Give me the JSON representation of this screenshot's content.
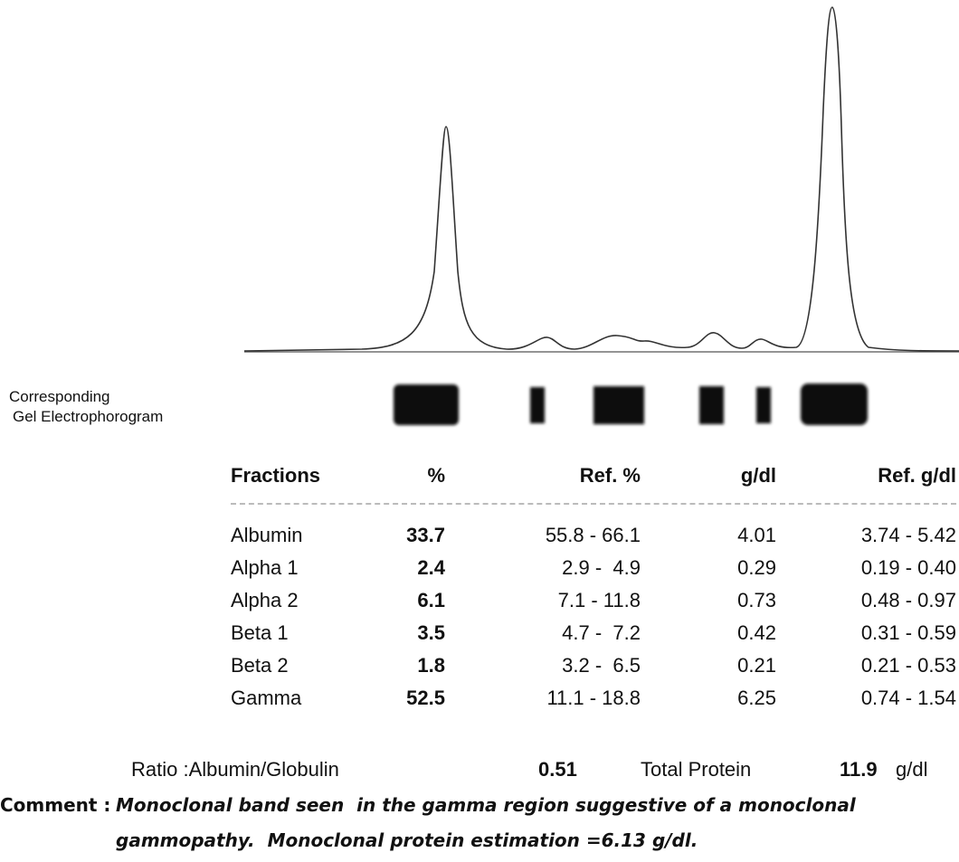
{
  "gel_label": [
    "Corresponding",
    "Gel Electrophorogram"
  ],
  "table": {
    "header": [
      "Fractions",
      "%",
      "Ref. %",
      "g/dl",
      "Ref. g/dl"
    ],
    "rows": [
      [
        "Albumin",
        "33.7",
        "55.8 - 66.1",
        "4.01",
        "3.74 - 5.42"
      ],
      [
        "Alpha 1",
        "2.4",
        "2.9 -  4.9",
        "0.29",
        "0.19 - 0.40"
      ],
      [
        "Alpha 2",
        "6.1",
        "7.1 - 11.8",
        "0.73",
        "0.48 - 0.97"
      ],
      [
        "Beta 1",
        "3.5",
        "4.7 -  7.2",
        "0.42",
        "0.31 - 0.59"
      ],
      [
        "Beta 2",
        "1.8",
        "3.2 -  6.5",
        "0.21",
        "0.21 - 0.53"
      ],
      [
        "Gamma",
        "52.5",
        "11.1 - 18.8",
        "6.25",
        "0.74 - 1.54"
      ]
    ]
  },
  "summary": {
    "ratio_label": "Ratio :Albumin/Globulin",
    "ratio_value": "0.51",
    "total_label": "Total Protein",
    "total_value": "11.9",
    "total_unit": "g/dl"
  },
  "comment": {
    "label": "Comment :",
    "lines": [
      "Monoclonal band seen  in the gamma region suggestive of a monoclonal",
      "gammopathy.  Monoclonal protein estimation =6.13 g/dl."
    ]
  }
}
